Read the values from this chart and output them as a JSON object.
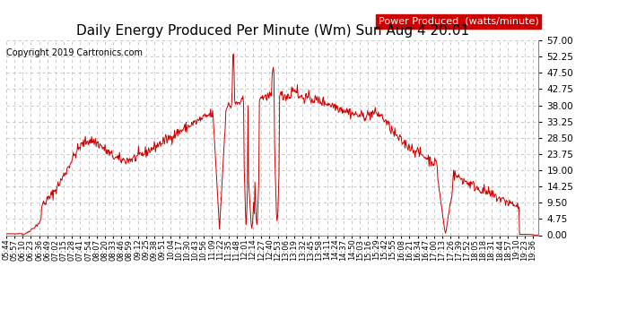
{
  "title": "Daily Energy Produced Per Minute (Wm) Sun Aug 4 20:01",
  "copyright": "Copyright 2019 Cartronics.com",
  "legend_label": "Power Produced  (watts/minute)",
  "legend_bg": "#cc0000",
  "legend_fg": "#ffffff",
  "line_color": "#cc0000",
  "bg_color": "#ffffff",
  "grid_color": "#c0c0c0",
  "yticks": [
    0.0,
    4.75,
    9.5,
    14.25,
    19.0,
    23.75,
    28.5,
    33.25,
    38.0,
    42.75,
    47.5,
    52.25,
    57.0
  ],
  "ymax": 57.0,
  "ymin": 0.0,
  "title_fontsize": 11,
  "copyright_fontsize": 7,
  "legend_fontsize": 8,
  "tick_fontsize": 6,
  "ytick_fontsize": 7.5
}
